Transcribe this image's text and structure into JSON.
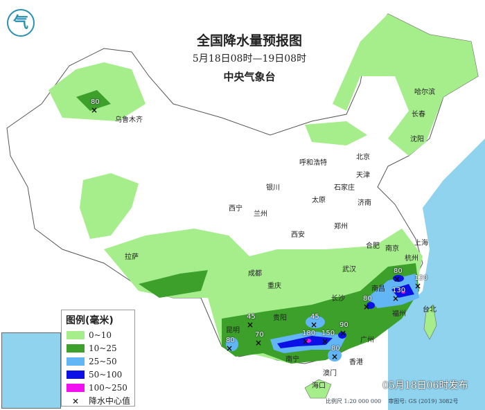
{
  "header": {
    "title": "全国降水量预报图",
    "period": "5月18日08时—19日08时",
    "issuer": "中央气象台",
    "logo_text": "气"
  },
  "legend": {
    "title": "图例(毫米)",
    "items": [
      {
        "label": "0~10",
        "color": "#a6ee8c"
      },
      {
        "label": "10~25",
        "color": "#3ca02a"
      },
      {
        "label": "25~50",
        "color": "#62b6f5"
      },
      {
        "label": "50~100",
        "color": "#0a10e6"
      },
      {
        "label": "100~250",
        "color": "#f010f0"
      },
      {
        "label": "降水中心值",
        "symbol": "×"
      }
    ]
  },
  "cities": [
    "乌鲁木齐",
    "哈尔滨",
    "长春",
    "沈阳",
    "呼和浩特",
    "北京",
    "天津",
    "石家庄",
    "太原",
    "济南",
    "银川",
    "西宁",
    "兰州",
    "郑州",
    "西安",
    "合肥",
    "南京",
    "上海",
    "杭州",
    "武汉",
    "成都",
    "拉萨",
    "重庆",
    "南昌",
    "长沙",
    "福州",
    "台北",
    "贵阳",
    "昆明",
    "广州",
    "南宁",
    "澳门",
    "香港",
    "海口"
  ],
  "rain_centers": [
    "80",
    "45",
    "70",
    "80",
    "45",
    "180",
    "150",
    "90",
    "80",
    "80",
    "130",
    "120",
    "80"
  ],
  "issued": "05月18日06时发布",
  "footer": {
    "scale": "比例尺 1:20 000 000",
    "approval": "审图号: GS (2019) 3082号"
  },
  "colors": {
    "sea": "#8fd3ef",
    "land": "#ffffff",
    "neighbor": "#f2f2f2"
  }
}
